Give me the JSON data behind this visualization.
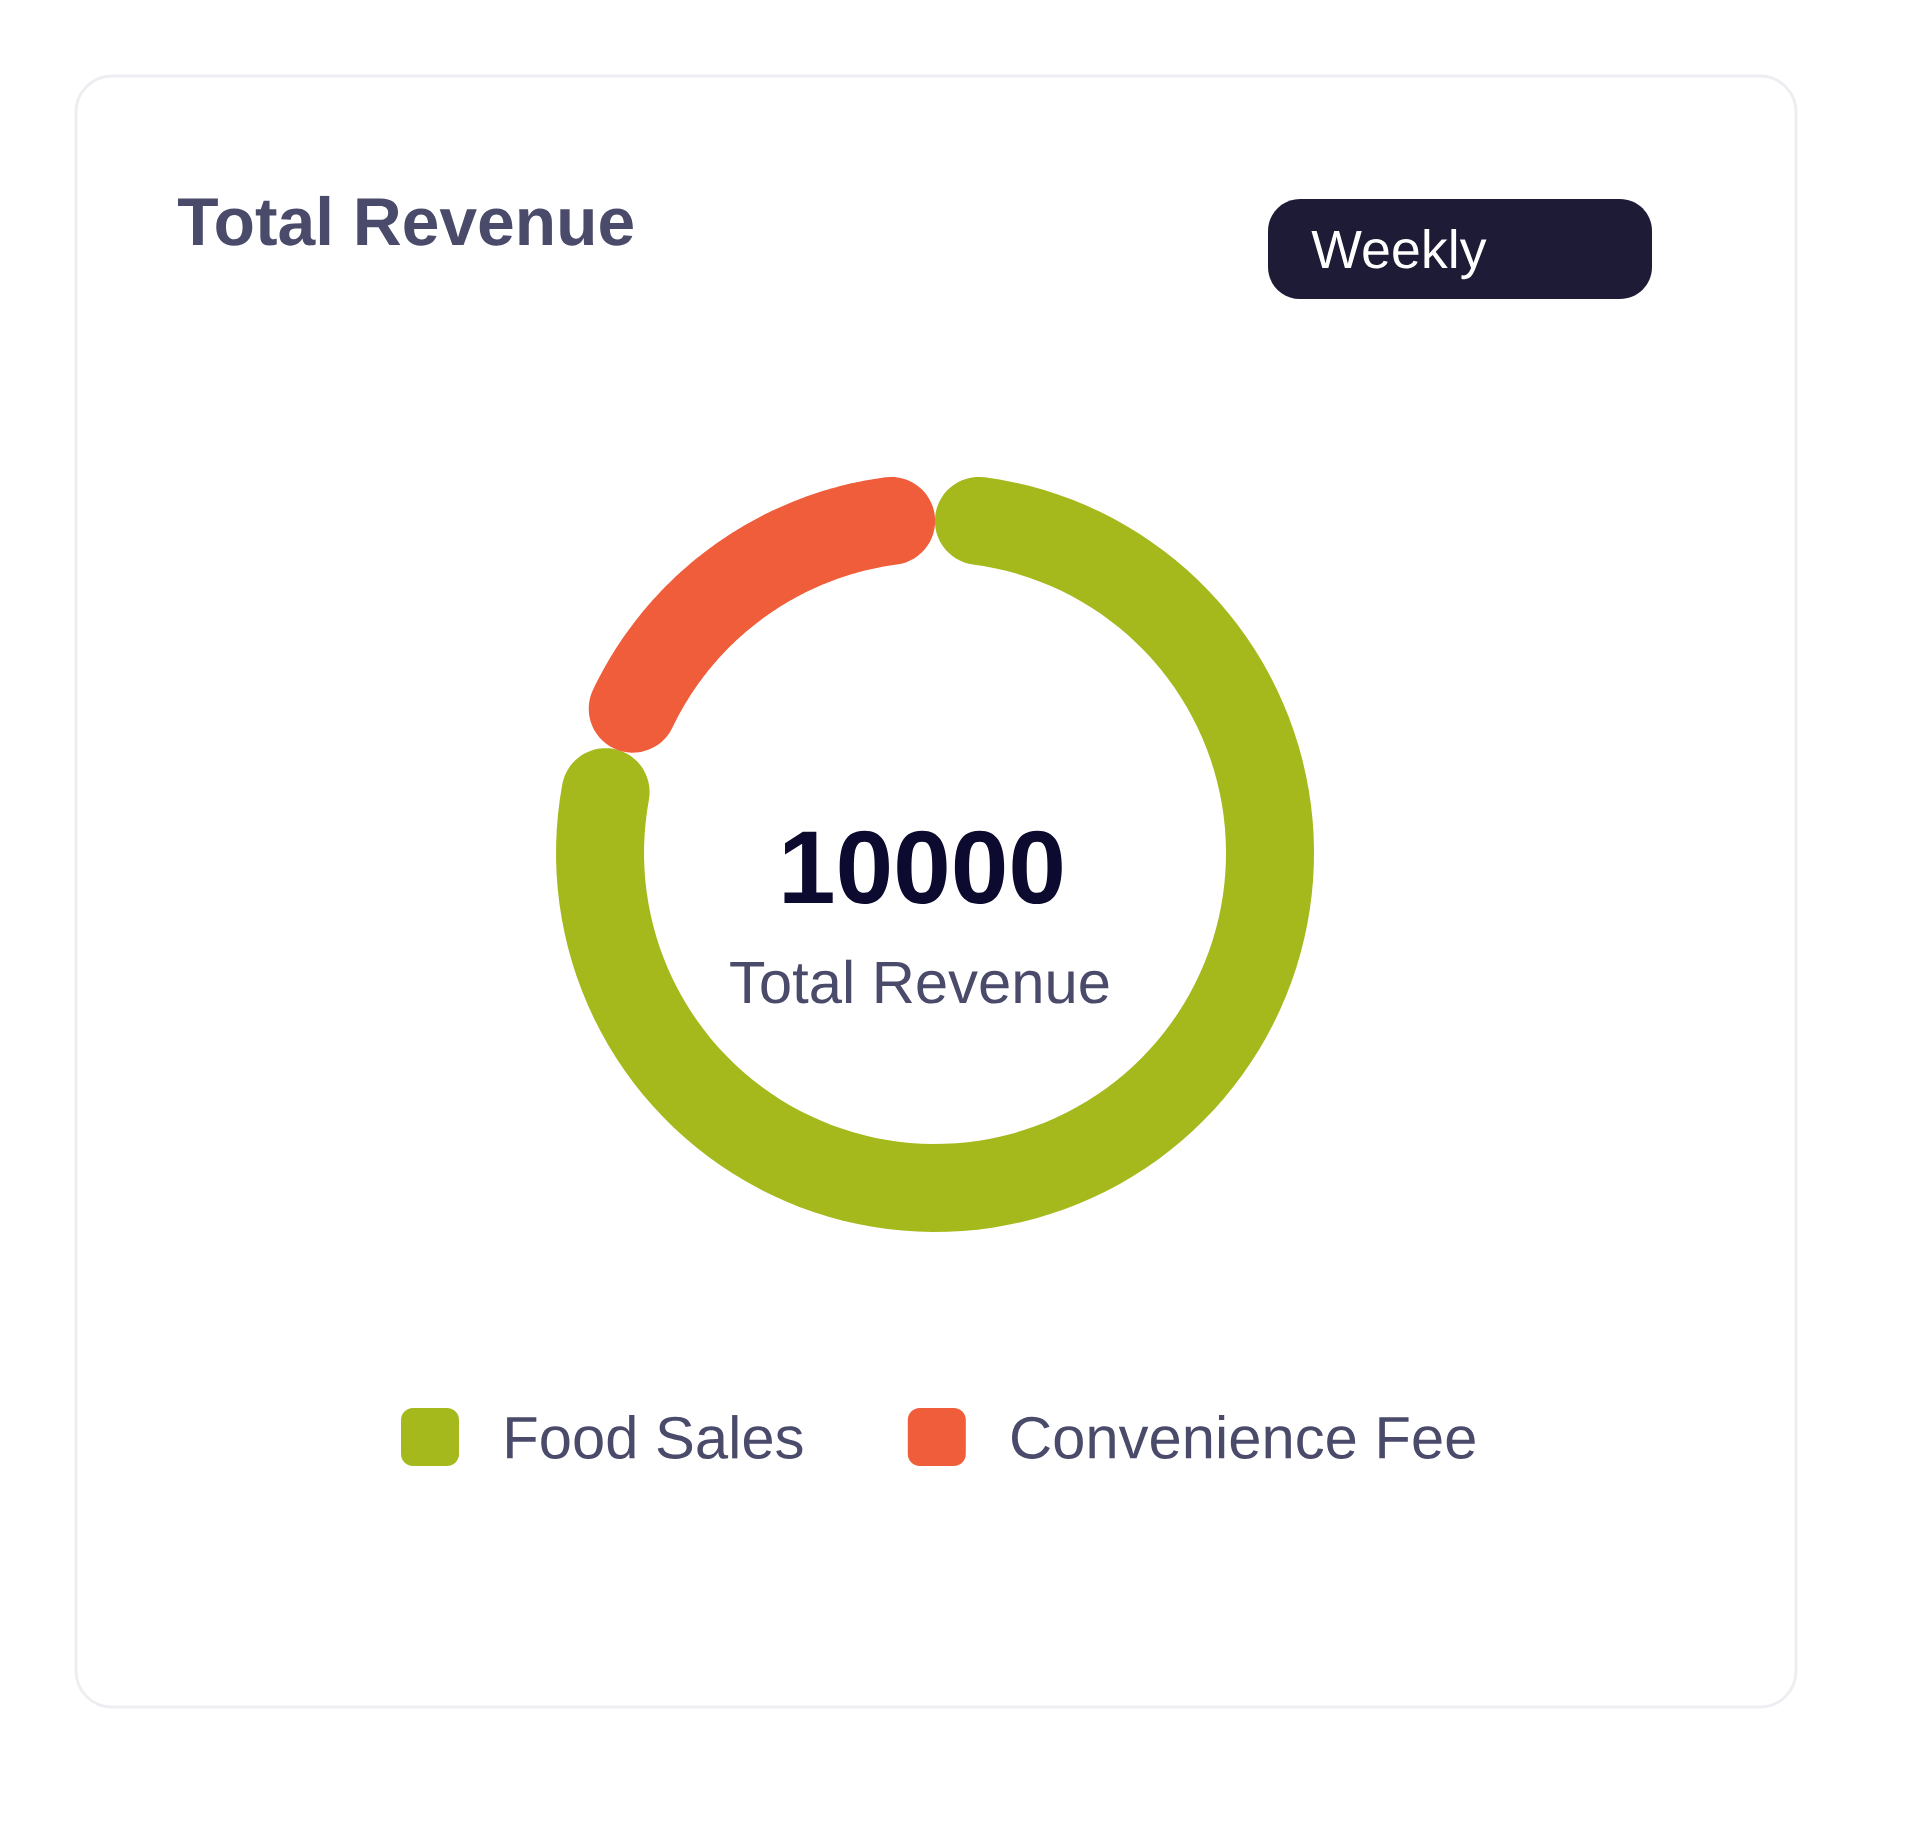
{
  "chart_data": {
    "type": "donut",
    "title": "Total Revenue",
    "categories": [
      "Food Sales",
      "Convenience Fee"
    ],
    "values": [
      80,
      20
    ],
    "colors": [
      "#a5b91c",
      "#f05d3a"
    ],
    "annotations": [
      "Weekly",
      "10000",
      "Total Revenue"
    ],
    "legend": "bottom"
  }
}
